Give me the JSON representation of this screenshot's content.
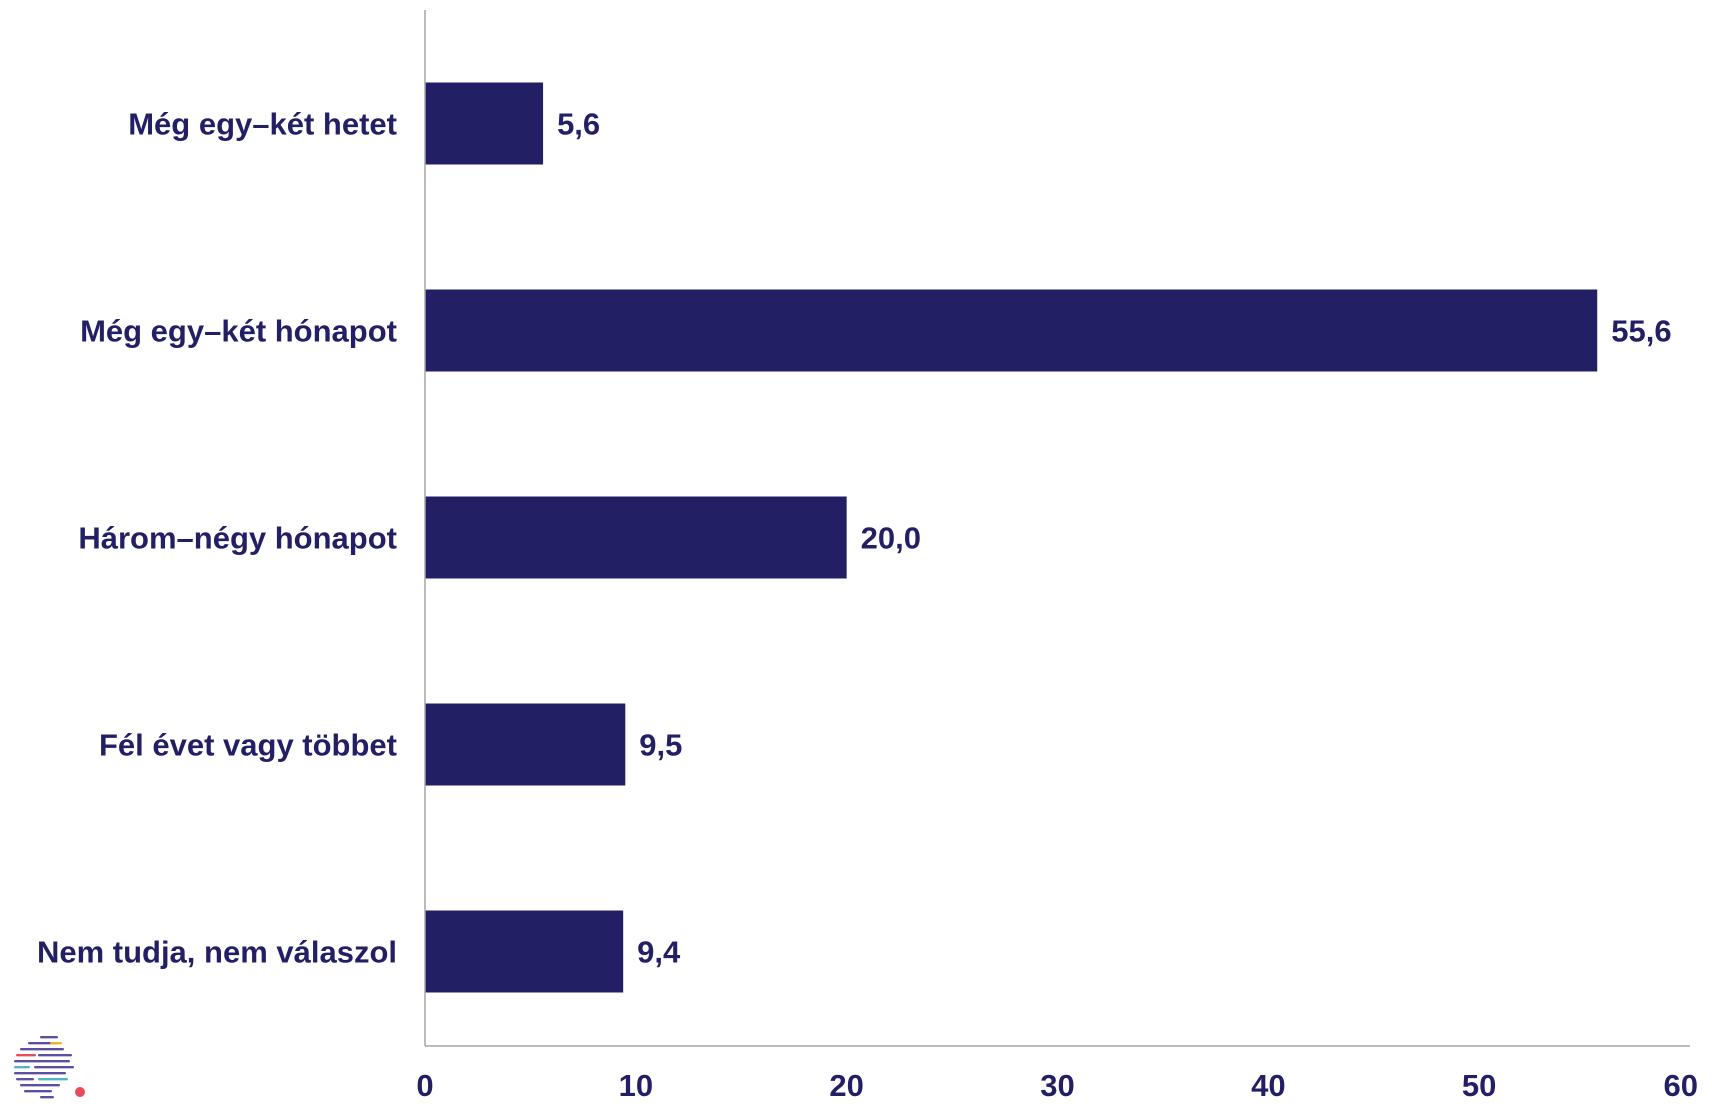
{
  "chart_data": {
    "type": "bar",
    "orientation": "horizontal",
    "categories": [
      "Még egy–két hetet",
      "Még egy–két hónapot",
      "Három–négy hónapot",
      "Fél évet vagy többet",
      "Nem tudja, nem válaszol"
    ],
    "values": [
      5.6,
      55.6,
      20.0,
      9.5,
      9.4
    ],
    "value_labels": [
      "5,6",
      "55,6",
      "20,0",
      "9,5",
      "9,4"
    ],
    "title": "",
    "xlabel": "",
    "ylabel": "",
    "xlim": [
      0,
      60
    ],
    "x_ticks": [
      0,
      10,
      20,
      30,
      40,
      50,
      60
    ],
    "grid": false,
    "legend": "none",
    "colors": {
      "bar": "#231f65",
      "text": "#231f65",
      "axis": "#a6a6a6"
    }
  },
  "logo": {
    "name": "stripes-logo-icon",
    "colors": [
      "#5b4ea3",
      "#e8b931",
      "#e94b5b",
      "#4fb6c4"
    ]
  }
}
